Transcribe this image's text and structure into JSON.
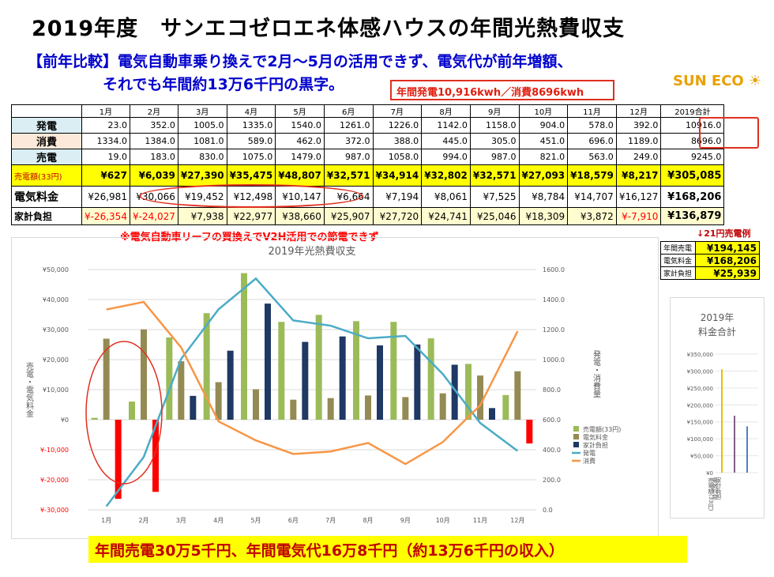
{
  "title": "2019年度　サンエコゼロエネ体感ハウスの年間光熱費収支",
  "subtitle_line1": "【前年比較】電気自動車乗り換えで2月～5月の活用できず、電気代が前年増額、",
  "subtitle_line2": "それでも年間約13万6千円の黒字。",
  "generation_callout": "年間発電10,916kwh／消費8696kwh",
  "logo_text": "SUN ECO",
  "note_leaf": "※電気自動車リーフの買換えでV2H活用での節電できず",
  "sell_example": "↓21円売電例",
  "bottom_banner": "年間売電30万5千円、年間電気代16万8千円（約13万6千円の収入）",
  "table": {
    "months": [
      "1月",
      "2月",
      "3月",
      "4月",
      "5月",
      "6月",
      "7月",
      "8月",
      "9月",
      "10月",
      "11月",
      "12月"
    ],
    "total_header": "2019合計",
    "rows": [
      {
        "label": "発電",
        "values": [
          "23.0",
          "352.0",
          "1005.0",
          "1335.0",
          "1540.0",
          "1261.0",
          "1226.0",
          "1142.0",
          "1158.0",
          "904.0",
          "578.0",
          "392.0"
        ],
        "total": "10916.0"
      },
      {
        "label": "消費",
        "values": [
          "1334.0",
          "1384.0",
          "1081.0",
          "589.0",
          "462.0",
          "372.0",
          "388.0",
          "445.0",
          "305.0",
          "451.0",
          "696.0",
          "1189.0"
        ],
        "total": "8696.0"
      },
      {
        "label": "売電",
        "values": [
          "19.0",
          "183.0",
          "830.0",
          "1075.0",
          "1479.0",
          "987.0",
          "1058.0",
          "994.0",
          "987.0",
          "821.0",
          "563.0",
          "249.0"
        ],
        "total": "9245.0"
      },
      {
        "label": "売電額(33円)",
        "values": [
          "¥627",
          "¥6,039",
          "¥27,390",
          "¥35,475",
          "¥48,807",
          "¥32,571",
          "¥34,914",
          "¥32,802",
          "¥32,571",
          "¥27,093",
          "¥18,579",
          "¥8,217"
        ],
        "total": "¥305,085"
      },
      {
        "label": "電気料金",
        "values": [
          "¥26,981",
          "¥30,066",
          "¥19,452",
          "¥12,498",
          "¥10,147",
          "¥6,664",
          "¥7,194",
          "¥8,061",
          "¥7,525",
          "¥8,784",
          "¥14,707",
          "¥16,127"
        ],
        "total": "¥168,206"
      },
      {
        "label": "家計負担",
        "values": [
          "¥-26,354",
          "¥-24,027",
          "¥7,938",
          "¥22,977",
          "¥38,660",
          "¥25,907",
          "¥27,720",
          "¥24,741",
          "¥25,046",
          "¥18,309",
          "¥3,872",
          "¥-7,910"
        ],
        "total": "¥136,879"
      }
    ]
  },
  "mini_table": [
    {
      "label": "年間売電",
      "value": "¥194,145"
    },
    {
      "label": "電気料金",
      "value": "¥168,206"
    },
    {
      "label": "家計負担",
      "value": "¥25,939"
    }
  ],
  "chart_data": [
    {
      "type": "bar+line",
      "title": "2019年光熱費収支",
      "ylabel_left": "売電・電気料金",
      "ylabel_right": "発電・消費量",
      "categories": [
        "1月",
        "2月",
        "3月",
        "4月",
        "5月",
        "6月",
        "7月",
        "8月",
        "9月",
        "10月",
        "11月",
        "12月"
      ],
      "ylim_left": [
        -30000,
        50000
      ],
      "yticks_left": [
        "¥50,000",
        "¥40,000",
        "¥30,000",
        "¥20,000",
        "¥10,000",
        "¥0",
        "¥-10,000",
        "¥-20,000",
        "¥-30,000"
      ],
      "ylim_right": [
        0,
        1600
      ],
      "yticks_right": [
        "1600.0",
        "1400.0",
        "1200.0",
        "1000.0",
        "800.0",
        "600.0",
        "400.0",
        "200.0",
        "0.0"
      ],
      "series": [
        {
          "name": "売電額(33円)",
          "kind": "bar",
          "color": "#9bbb59",
          "values": [
            627,
            6039,
            27390,
            35475,
            48807,
            32571,
            34914,
            32802,
            32571,
            27093,
            18579,
            8217
          ]
        },
        {
          "name": "電気料金",
          "kind": "bar",
          "color": "#948a54",
          "values": [
            26981,
            30066,
            19452,
            12498,
            10147,
            6664,
            7194,
            8061,
            7525,
            8784,
            14707,
            16127
          ]
        },
        {
          "name": "家計負担",
          "kind": "bar",
          "color": "#1f3864",
          "neg_color": "#ff0000",
          "values": [
            -26354,
            -24027,
            7938,
            22977,
            38660,
            25907,
            27720,
            24741,
            25046,
            18309,
            3872,
            -7910
          ]
        },
        {
          "name": "発電",
          "kind": "line",
          "axis": "right",
          "color": "#4bacc6",
          "values": [
            23,
            352,
            1005,
            1335,
            1540,
            1261,
            1226,
            1142,
            1158,
            904,
            578,
            392
          ]
        },
        {
          "name": "消費",
          "kind": "line",
          "axis": "right",
          "color": "#f79646",
          "values": [
            1334,
            1384,
            1081,
            589,
            462,
            372,
            388,
            445,
            305,
            451,
            696,
            1189
          ]
        }
      ],
      "legend": "right",
      "grid": true
    },
    {
      "type": "bar",
      "title": "2019年料金合計",
      "ylim": [
        0,
        350000
      ],
      "yticks": [
        "¥350,000",
        "¥300,000",
        "¥250,000",
        "¥200,000",
        "¥150,000",
        "¥100,000",
        "¥50,000",
        "¥0"
      ],
      "categories": [
        "売電額(33円)",
        "電気料金",
        "家計負担"
      ],
      "colors": [
        "#e8c000",
        "#7f6084",
        "#4f81bd"
      ],
      "values": [
        305085,
        168206,
        136879
      ]
    }
  ]
}
